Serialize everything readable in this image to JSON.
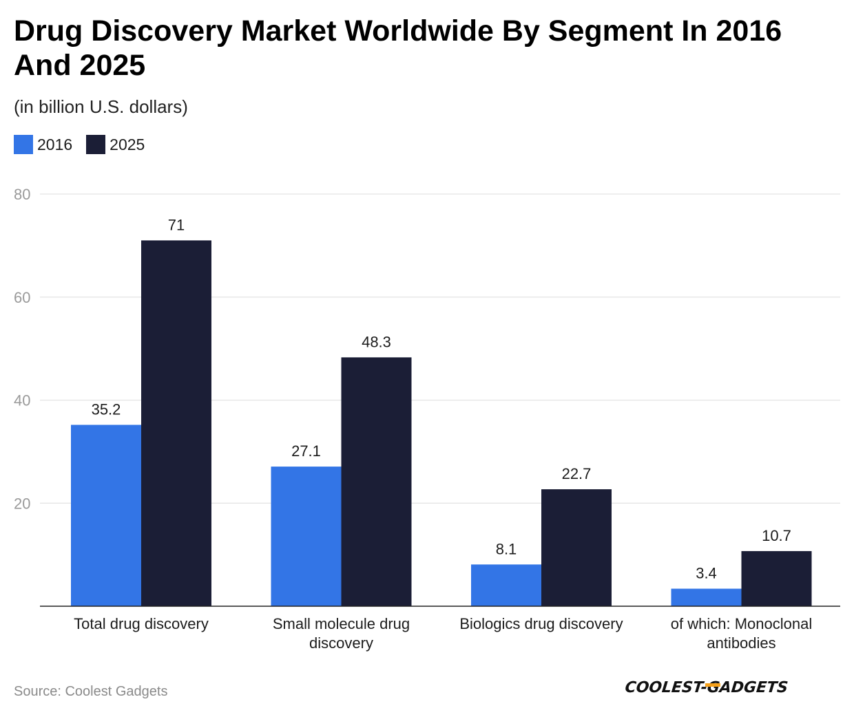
{
  "header": {
    "title": "Drug Discovery Market Worldwide By Segment In 2016 And 2025",
    "subtitle": "(in billion U.S. dollars)"
  },
  "legend": [
    {
      "label": "2016",
      "color": "#3375e6"
    },
    {
      "label": "2025",
      "color": "#1b1e36"
    }
  ],
  "footer": {
    "source": "Source: Coolest Gadgets",
    "brand": "COOLEST-GADGETS"
  },
  "chart_data": {
    "type": "bar",
    "title": "Drug Discovery Market Worldwide By Segment In 2016 And 2025",
    "subtitle": "(in billion U.S. dollars)",
    "xlabel": "",
    "ylabel": "",
    "ylim": [
      0,
      80
    ],
    "yticks": [
      20,
      40,
      60,
      80
    ],
    "grid": true,
    "legend_position": "top-left",
    "categories": [
      [
        "Total drug discovery"
      ],
      [
        "Small molecule drug",
        "discovery"
      ],
      [
        "Biologics drug discovery"
      ],
      [
        "of which: Monoclonal",
        "antibodies"
      ]
    ],
    "series": [
      {
        "name": "2016",
        "color": "#3375e6",
        "values": [
          35.2,
          27.1,
          8.1,
          3.4
        ],
        "labels": [
          "35.2",
          "27.1",
          "8.1",
          "3.4"
        ]
      },
      {
        "name": "2025",
        "color": "#1b1e36",
        "values": [
          71,
          48.3,
          22.7,
          10.7
        ],
        "labels": [
          "71",
          "48.3",
          "22.7",
          "10.7"
        ]
      }
    ]
  }
}
